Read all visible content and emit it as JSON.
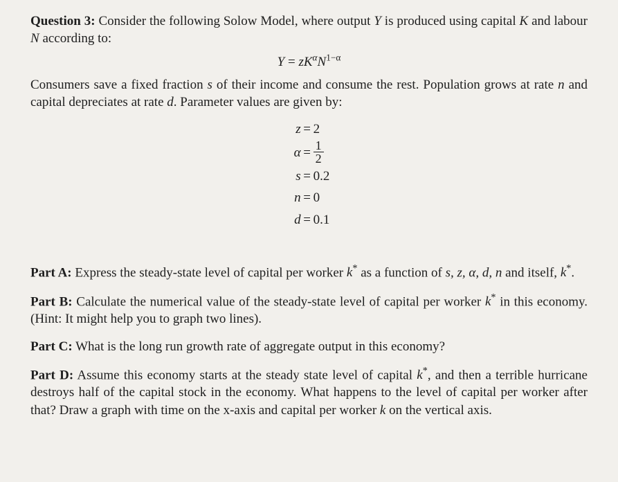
{
  "question": {
    "label": "Question 3:",
    "intro_before_Y": "Consider the following Solow Model, where output ",
    "var_Y": "Y",
    "intro_mid": " is produced using capital ",
    "var_K": "K",
    "intro_mid2": " and labour ",
    "var_N": "N",
    "intro_after": " according to:",
    "production_eq": {
      "lhs": "Y",
      "equals": " = ",
      "z": "z",
      "K": "K",
      "alpha_sup": "α",
      "N": "N",
      "exp_text": "1−α"
    },
    "p2_a": "Consumers save a fixed fraction ",
    "p2_s": "s",
    "p2_b": " of their income and consume the rest. Population grows at rate ",
    "p2_n": "n",
    "p2_c": " and capital depreciates at rate ",
    "p2_d": "d",
    "p2_e": ". Parameter values are given by:",
    "params": {
      "z": {
        "lhs": "z",
        "rhs": "2"
      },
      "alpha": {
        "lhs": "α",
        "num": "1",
        "den": "2"
      },
      "s": {
        "lhs": "s",
        "rhs": "0.2"
      },
      "n": {
        "lhs": "n",
        "rhs": "0"
      },
      "d": {
        "lhs": "d",
        "rhs": "0.1"
      }
    }
  },
  "parts": {
    "A": {
      "label": "Part A:",
      "t1": " Express the steady-state level of capital per worker ",
      "kstar_k": "k",
      "kstar_star": "*",
      "t2": " as a function of ",
      "varlist": "s, z, α, d, n",
      "t3": " and itself, ",
      "kstar2_k": "k",
      "kstar2_star": "*",
      "t4": "."
    },
    "B": {
      "label": "Part B:",
      "t1": " Calculate the numerical value of the steady-state level of capital per worker ",
      "kstar_k": "k",
      "kstar_star": "*",
      "t2": " in this economy. (Hint: It might help you to graph two lines)."
    },
    "C": {
      "label": "Part C:",
      "t1": " What is the long run growth rate of aggregate output in this economy?"
    },
    "D": {
      "label": "Part D:",
      "t1": " Assume this economy starts at the steady state level of capital ",
      "kstar_k": "k",
      "kstar_star": "*",
      "t2": ", and then a terrible hurricane destroys half of the capital stock in the economy. What happens to the level of capital per worker after that? Draw a graph with time on the x-axis and capital per worker ",
      "var_k": "k",
      "t3": " on the vertical axis."
    }
  },
  "colors": {
    "background": "#f2f0ec",
    "text": "#1e1e1e"
  },
  "typography": {
    "font_family": "Times New Roman",
    "body_fontsize_pt": 14,
    "bold_weight": 700
  }
}
